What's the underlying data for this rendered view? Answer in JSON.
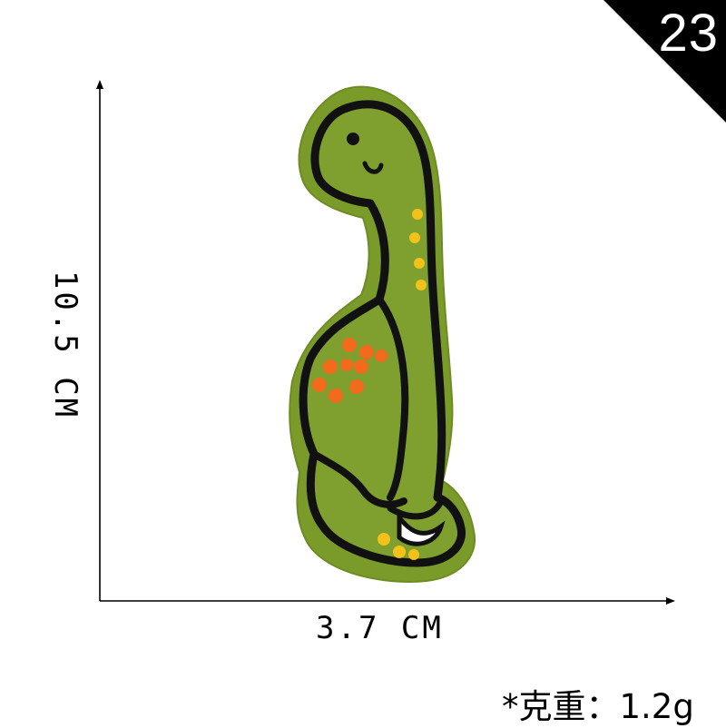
{
  "badge": {
    "number": "23",
    "color": "#000000"
  },
  "dimensions": {
    "height": "10.5 CM",
    "width": "3.7 CM"
  },
  "weight": {
    "text": "*克重：1.2g"
  },
  "patch": {
    "subject": "dinosaur-embroidered-patch",
    "colors": {
      "felt": "#7a9a2a",
      "outline": "#111111",
      "spots_orange": "#f26a1b",
      "dots_yellow": "#f2c21b"
    }
  }
}
